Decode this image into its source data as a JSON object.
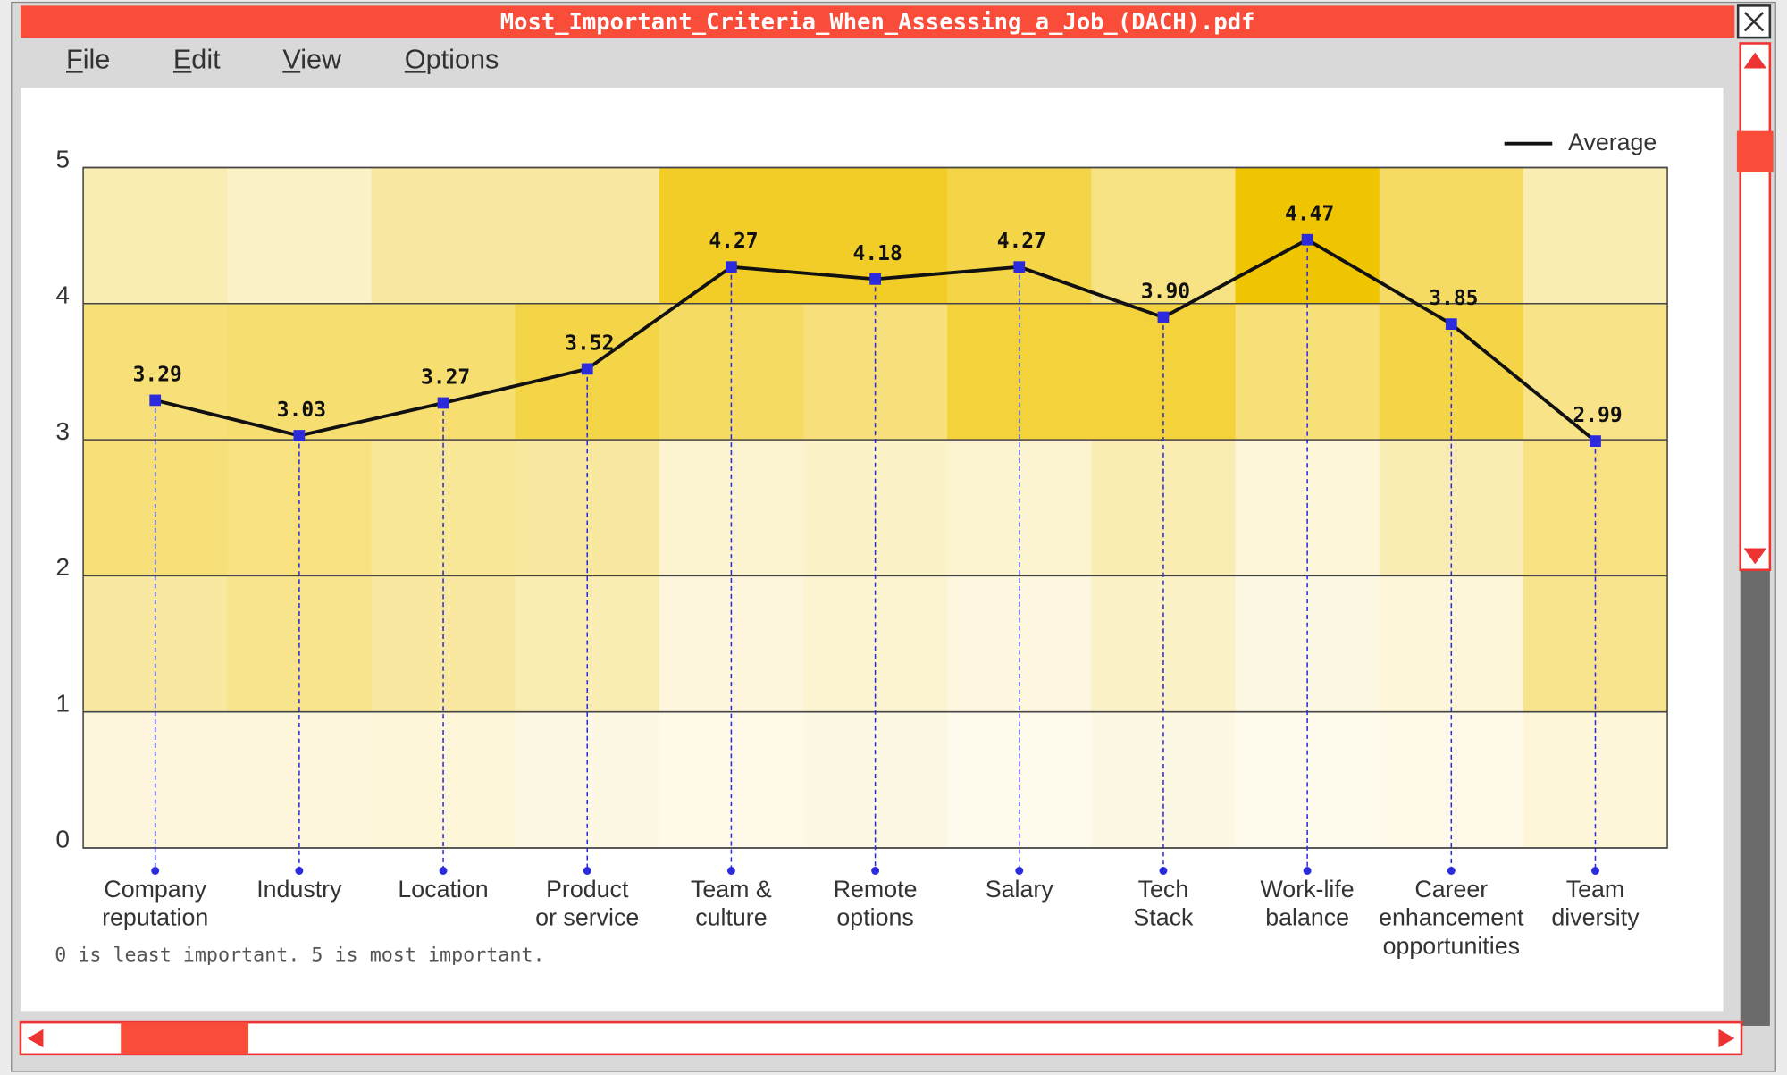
{
  "window_title": "Most_Important_Criteria_When_Assessing_a_Job_(DACH).pdf",
  "menu": [
    "File",
    "Edit",
    "View",
    "Options"
  ],
  "chart_data": {
    "type": "line",
    "categories": [
      "Company\nreputation",
      "Industry",
      "Location",
      "Product\nor service",
      "Team &\nculture",
      "Remote\noptions",
      "Salary",
      "Tech\nStack",
      "Work-life\nbalance",
      "Career\nenhancement\nopportunities",
      "Team\ndiversity"
    ],
    "series": [
      {
        "name": "Average",
        "color": "#111111",
        "marker_color": "#2b2bdd",
        "values": [
          3.29,
          3.03,
          3.27,
          3.52,
          4.27,
          4.18,
          4.27,
          3.9,
          4.47,
          3.85,
          2.99
        ],
        "value_labels": [
          "3.29",
          "3.03",
          "3.27",
          "3.52",
          "4.27",
          "4.18",
          "4.27",
          "3.90",
          "4.47",
          "3.85",
          "2.99"
        ]
      }
    ],
    "heatmap": [
      [
        5,
        20,
        30,
        30,
        15
      ],
      [
        5,
        25,
        28,
        32,
        10
      ],
      [
        6,
        20,
        22,
        32,
        20
      ],
      [
        3,
        15,
        20,
        42,
        20
      ],
      [
        2,
        5,
        8,
        35,
        50
      ],
      [
        3,
        8,
        10,
        29,
        50
      ],
      [
        1,
        4,
        8,
        45,
        42
      ],
      [
        3,
        10,
        15,
        45,
        27
      ],
      [
        1,
        3,
        6,
        30,
        60
      ],
      [
        2,
        6,
        15,
        42,
        35
      ],
      [
        6,
        25,
        28,
        26,
        15
      ]
    ],
    "ylim": [
      0,
      5
    ],
    "yticks": [
      0,
      1,
      2,
      3,
      4,
      5
    ],
    "grid": true,
    "legend": "upper right",
    "note": "0 is least important. 5 is most important."
  }
}
